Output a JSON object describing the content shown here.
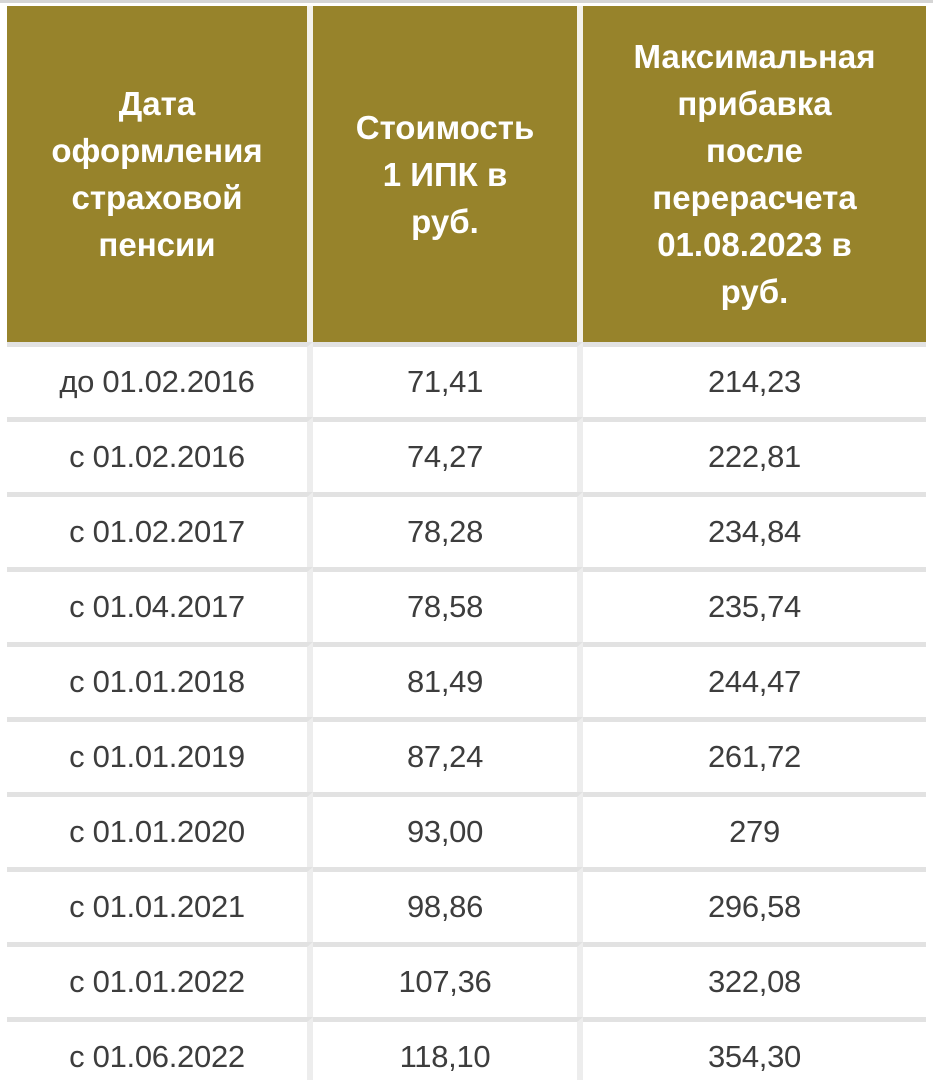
{
  "table": {
    "headers": [
      {
        "lines": "Дата\nоформления\nстраховой\nпенсии"
      },
      {
        "lines": "Стоимость\n1 ИПК в\nруб."
      },
      {
        "lines": "Максимальная\nприбавка\nпосле\nперерасчета\n01.08.2023 в\nруб."
      }
    ],
    "rows": [
      {
        "date": "до 01.02.2016",
        "cost": "71,41",
        "increase": "214,23"
      },
      {
        "date": "с 01.02.2016",
        "cost": "74,27",
        "increase": "222,81"
      },
      {
        "date": "с 01.02.2017",
        "cost": "78,28",
        "increase": "234,84"
      },
      {
        "date": "с 01.04.2017",
        "cost": "78,58",
        "increase": "235,74"
      },
      {
        "date": "с 01.01.2018",
        "cost": "81,49",
        "increase": "244,47"
      },
      {
        "date": "с 01.01.2019",
        "cost": "87,24",
        "increase": "261,72"
      },
      {
        "date": "с 01.01.2020",
        "cost": "93,00",
        "increase": "279"
      },
      {
        "date": "с 01.01.2021",
        "cost": "98,86",
        "increase": "296,58"
      },
      {
        "date": "с 01.01.2022",
        "cost": "107,36",
        "increase": "322,08"
      },
      {
        "date": "с 01.06.2022",
        "cost": "118,10",
        "increase": "354,30"
      }
    ]
  },
  "chart_data": {
    "type": "table",
    "columns": [
      "Дата оформления страховой пенсии",
      "Стоимость 1 ИПК в руб.",
      "Максимальная прибавка после перерасчета 01.08.2023 в руб."
    ],
    "rows": [
      [
        "до 01.02.2016",
        "71,41",
        "214,23"
      ],
      [
        "с 01.02.2016",
        "74,27",
        "222,81"
      ],
      [
        "с 01.02.2017",
        "78,28",
        "234,84"
      ],
      [
        "с 01.04.2017",
        "78,58",
        "235,74"
      ],
      [
        "с 01.01.2018",
        "81,49",
        "244,47"
      ],
      [
        "с 01.01.2019",
        "87,24",
        "261,72"
      ],
      [
        "с 01.01.2020",
        "93,00",
        "279"
      ],
      [
        "с 01.01.2021",
        "98,86",
        "296,58"
      ],
      [
        "с 01.01.2022",
        "107,36",
        "322,08"
      ],
      [
        "с 01.06.2022",
        "118,10",
        "354,30"
      ]
    ]
  },
  "theme": {
    "header_bg": "#97832b",
    "header_text": "#ffffff",
    "body_text": "#3d3d3d",
    "row_border": "#e2e2e2",
    "col_border_body": "#ededed",
    "col_border_header": "#f3f2ed",
    "top_strip": "#d5d5d5",
    "page_bg": "#ffffff"
  }
}
